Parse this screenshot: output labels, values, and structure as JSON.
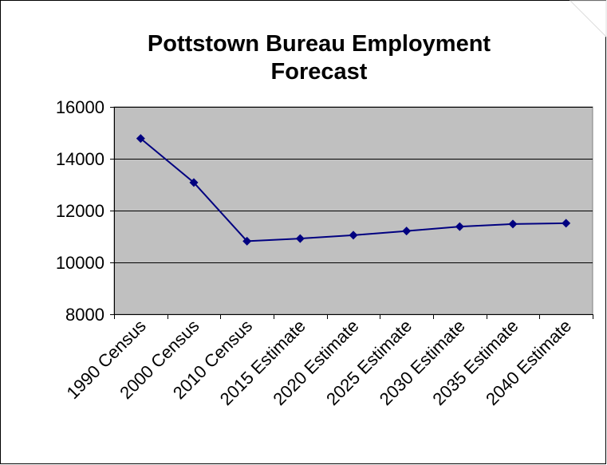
{
  "chart_data": {
    "type": "line",
    "title": "Pottstown Bureau Employment Forecast",
    "title_lines": [
      "Pottstown Bureau Employment",
      "Forecast"
    ],
    "xlabel": "",
    "ylabel": "",
    "categories": [
      "1990 Census",
      "2000 Census",
      "2010 Census",
      "2015 Estimate",
      "2020 Estimate",
      "2025 Estimate",
      "2030 Estimate",
      "2035 Estimate",
      "2040 Estimate"
    ],
    "series": [
      {
        "values": [
          14780,
          13080,
          10820,
          10920,
          11050,
          11210,
          11380,
          11480,
          11510
        ]
      }
    ],
    "ylim": [
      8000,
      16000
    ],
    "yticks": [
      8000,
      10000,
      12000,
      14000,
      16000
    ],
    "grid": true,
    "legend": "none",
    "colors": {
      "line": "#000080",
      "plot_background": "#c0c0c0",
      "gridline": "#000000"
    }
  }
}
